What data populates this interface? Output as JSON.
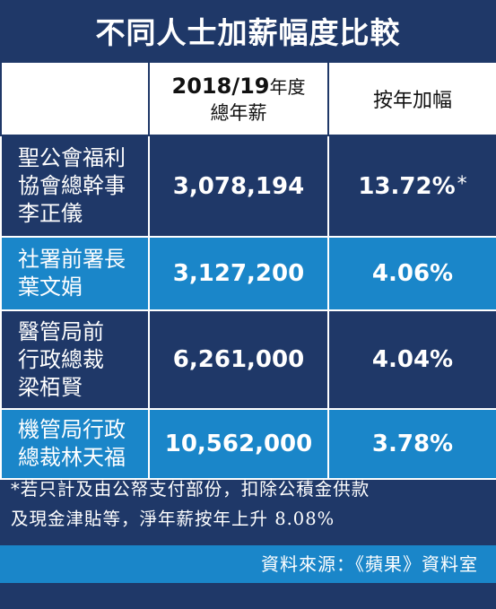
{
  "title": "不同人士加薪幅度比較",
  "header": {
    "col1_year": "2018/19",
    "col1_year_suffix": "年度",
    "col1_sub": "總年薪",
    "col2": "按年加幅"
  },
  "rows": [
    {
      "name_lines": [
        "聖公會福利",
        "協會總幹事",
        "李正儀"
      ],
      "salary": "3,078,194",
      "increase": "13.72%",
      "mark": "*"
    },
    {
      "name_lines": [
        "社署前署長",
        "葉文娟"
      ],
      "salary": "3,127,200",
      "increase": "4.06%"
    },
    {
      "name_lines": [
        "醫管局前",
        "行政總裁",
        "梁栢賢"
      ],
      "salary": "6,261,000",
      "increase": "4.04%"
    },
    {
      "name_lines": [
        "機管局行政",
        "總裁林天福"
      ],
      "salary": "10,562,000",
      "increase": "3.78%"
    }
  ],
  "footnote_lines": [
    "*若只計及由公帑支付部份，扣除公積金供款",
    "及現金津貼等，淨年薪按年上升 8.08%"
  ],
  "source": "資料來源：《蘋果》資料室",
  "colors": {
    "navy": "#1f3868",
    "blue": "#1a86c9",
    "white": "#ffffff"
  }
}
